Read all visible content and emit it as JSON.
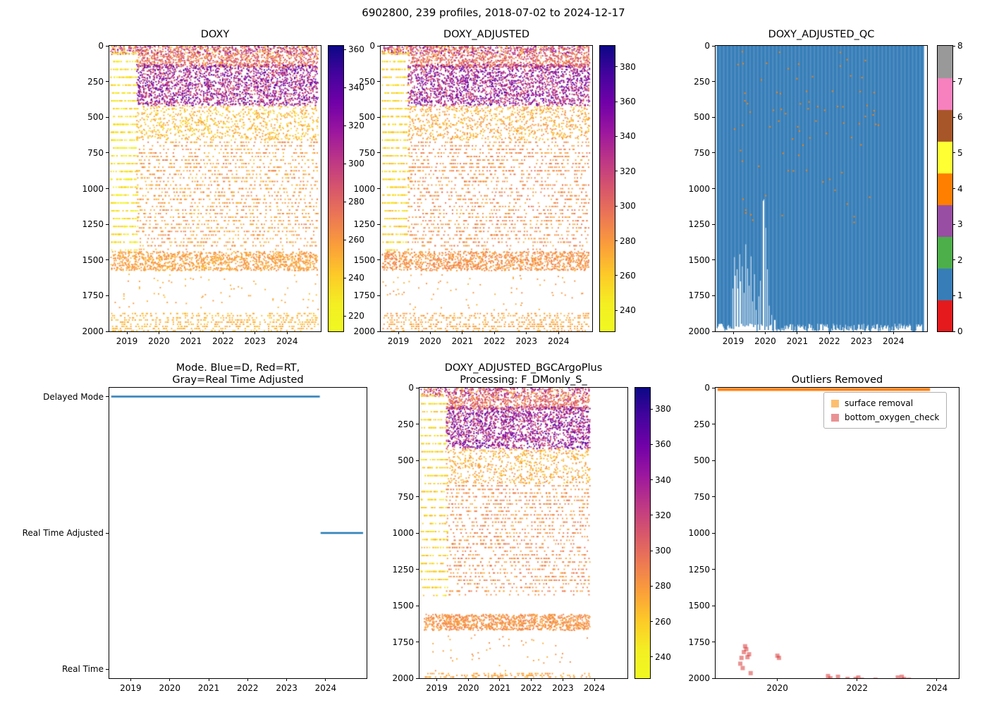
{
  "figure": {
    "suptitle": "6902800, 239 profiles, 2018-07-02 to 2024-12-17"
  },
  "chart_data": {
    "type": "scatter",
    "platform": "6902800",
    "profile_count": 239,
    "date_range": [
      "2018-07-02",
      "2024-12-17"
    ],
    "panels": [
      {
        "key": "doxy",
        "type": "profile_scatter",
        "title": "DOXY",
        "x_range": [
          2018.45,
          2025.05
        ],
        "x_ticks": [
          2019,
          2020,
          2021,
          2022,
          2023,
          2024
        ],
        "y_range": [
          0,
          2000
        ],
        "y_ticks": [
          0,
          250,
          500,
          750,
          1000,
          1250,
          1500,
          1750,
          2000
        ],
        "colorbar": {
          "vmin": 212,
          "vmax": 362,
          "ticks": [
            220,
            240,
            260,
            280,
            300,
            320,
            340,
            360
          ],
          "colormap": "plasma_r"
        },
        "seed": 11,
        "regions": [
          {
            "t": [
              2018.5,
              2024.96
            ],
            "d": [
              0,
              60
            ],
            "n": 700,
            "v": [
              240,
              330
            ]
          },
          {
            "t": [
              2018.5,
              2019.35
            ],
            "d": [
              30,
              1420
            ],
            "n": 700,
            "v": [
              214,
              246
            ],
            "dq": 55
          },
          {
            "t": [
              2019.3,
              2024.96
            ],
            "d": [
              60,
              150
            ],
            "n": 800,
            "v": [
              252,
              300
            ]
          },
          {
            "t": [
              2019.3,
              2024.96
            ],
            "d": [
              130,
              420
            ],
            "n": 2200,
            "v": [
              275,
              350
            ]
          },
          {
            "t": [
              2019.3,
              2024.96
            ],
            "d": [
              420,
              660
            ],
            "n": 900,
            "v": [
              232,
              262
            ]
          },
          {
            "t": [
              2019.3,
              2024.96
            ],
            "d": [
              660,
              1420
            ],
            "n": 1700,
            "v": [
              244,
              274
            ],
            "dq": 25
          },
          {
            "t": [
              2018.5,
              2024.96
            ],
            "d": [
              1440,
              1575
            ],
            "n": 1300,
            "v": [
              246,
              268
            ]
          },
          {
            "t": [
              2018.5,
              2024.96
            ],
            "d": [
              1600,
              1850
            ],
            "n": 70,
            "v": [
              244,
              262
            ]
          },
          {
            "t": [
              2018.5,
              2024.96
            ],
            "d": [
              1870,
              2000
            ],
            "n": 520,
            "v": [
              242,
              258
            ],
            "dq": 15
          }
        ]
      },
      {
        "key": "doxy_adjusted",
        "type": "profile_scatter",
        "title": "DOXY_ADJUSTED",
        "x_range": [
          2018.45,
          2025.05
        ],
        "x_ticks": [
          2019,
          2020,
          2021,
          2022,
          2023,
          2024
        ],
        "y_range": [
          0,
          2000
        ],
        "y_ticks": [
          0,
          250,
          500,
          750,
          1000,
          1250,
          1500,
          1750,
          2000
        ],
        "colorbar": {
          "vmin": 228,
          "vmax": 392,
          "ticks": [
            240,
            260,
            280,
            300,
            320,
            340,
            360,
            380
          ],
          "colormap": "plasma_r"
        },
        "seed": 12,
        "regions": [
          {
            "t": [
              2018.5,
              2024.96
            ],
            "d": [
              0,
              60
            ],
            "n": 700,
            "v": [
              266,
              356
            ]
          },
          {
            "t": [
              2018.5,
              2019.35
            ],
            "d": [
              30,
              1420
            ],
            "n": 700,
            "v": [
              240,
              272
            ],
            "dq": 55
          },
          {
            "t": [
              2019.3,
              2024.96
            ],
            "d": [
              60,
              150
            ],
            "n": 800,
            "v": [
              278,
              326
            ]
          },
          {
            "t": [
              2019.3,
              2024.96
            ],
            "d": [
              130,
              420
            ],
            "n": 2200,
            "v": [
              301,
              376
            ]
          },
          {
            "t": [
              2019.3,
              2024.96
            ],
            "d": [
              420,
              660
            ],
            "n": 900,
            "v": [
              258,
              288
            ]
          },
          {
            "t": [
              2019.3,
              2024.96
            ],
            "d": [
              660,
              1420
            ],
            "n": 1700,
            "v": [
              270,
              300
            ],
            "dq": 25
          },
          {
            "t": [
              2018.5,
              2024.96
            ],
            "d": [
              1440,
              1575
            ],
            "n": 1300,
            "v": [
              272,
              294
            ]
          },
          {
            "t": [
              2018.5,
              2024.96
            ],
            "d": [
              1600,
              1850
            ],
            "n": 70,
            "v": [
              270,
              288
            ]
          },
          {
            "t": [
              2018.5,
              2024.96
            ],
            "d": [
              1870,
              2000
            ],
            "n": 520,
            "v": [
              268,
              284
            ],
            "dq": 15
          }
        ]
      },
      {
        "key": "doxy_adjusted_qc",
        "type": "qc",
        "title": "DOXY_ADJUSTED_QC",
        "x_range": [
          2018.45,
          2025.05
        ],
        "x_ticks": [
          2019,
          2020,
          2021,
          2022,
          2023,
          2024
        ],
        "y_range": [
          0,
          2000
        ],
        "y_ticks": [
          0,
          250,
          500,
          750,
          1000,
          1250,
          1500,
          1750,
          2000
        ],
        "fill_color": "#377eb8",
        "fill_qc_value": 1,
        "speckle_color": "#ff7f00",
        "speckle_qc_value": 4,
        "speckles": {
          "n": 80,
          "t": [
            2019.05,
            2023.6
          ],
          "d": [
            40,
            1250
          ]
        },
        "max_depth": [
          1945,
          2005
        ],
        "shallow_profiles": [
          [
            2018.98,
            1700
          ],
          [
            2019.03,
            1480
          ],
          [
            2019.07,
            1610
          ],
          [
            2019.12,
            1565
          ],
          [
            2019.16,
            1700
          ],
          [
            2019.2,
            1460
          ],
          [
            2019.24,
            1650
          ],
          [
            2019.29,
            1545
          ],
          [
            2019.34,
            1730
          ],
          [
            2019.39,
            1390
          ],
          [
            2019.45,
            1560
          ],
          [
            2019.5,
            1680
          ],
          [
            2019.55,
            1475
          ],
          [
            2019.6,
            1790
          ],
          [
            2019.66,
            1600
          ],
          [
            2019.72,
            1850
          ],
          [
            2019.8,
            1755
          ],
          [
            2019.86,
            1645
          ],
          [
            2019.93,
            1085
          ],
          [
            2019.97,
            1075
          ],
          [
            2020.02,
            1275
          ],
          [
            2020.07,
            1565
          ],
          [
            2020.12,
            1820
          ],
          [
            2020.2,
            1885
          ],
          [
            2020.3,
            1920
          ]
        ],
        "colorbar": {
          "vmin": 0,
          "vmax": 8,
          "ticks": [
            0,
            1,
            2,
            3,
            4,
            5,
            6,
            7,
            8
          ],
          "colors": [
            "#e41a1c",
            "#377eb8",
            "#4daf4a",
            "#984ea3",
            "#ff7f00",
            "#ffff33",
            "#a65628",
            "#f781bf",
            "#999999"
          ]
        },
        "seed": 13
      },
      {
        "key": "mode",
        "type": "mode",
        "title_lines": [
          "Mode. Blue=D, Red=RT,",
          "Gray=Real Time Adjusted"
        ],
        "x_range": [
          2018.45,
          2025.05
        ],
        "x_ticks": [
          2019,
          2020,
          2021,
          2022,
          2023,
          2024
        ],
        "categories": [
          "Delayed Mode",
          "Real Time Adjusted",
          "Real Time"
        ],
        "line_color": "#1f77b4",
        "segments": [
          {
            "category_index": 0,
            "t": [
              2018.5,
              2023.85
            ]
          },
          {
            "category_index": 1,
            "t": [
              2023.87,
              2024.96
            ]
          }
        ]
      },
      {
        "key": "doxy_adjusted_bgcargoplus",
        "type": "profile_scatter",
        "title_lines": [
          "DOXY_ADJUSTED_BGCArgoPlus",
          "Processing: F_DMonly_S_"
        ],
        "x_range": [
          2018.45,
          2025.05
        ],
        "x_ticks": [
          2019,
          2020,
          2021,
          2022,
          2023,
          2024
        ],
        "y_range": [
          0,
          2000
        ],
        "y_ticks": [
          0,
          250,
          500,
          750,
          1000,
          1250,
          1500,
          1750,
          2000
        ],
        "colorbar": {
          "vmin": 228,
          "vmax": 392,
          "ticks": [
            240,
            260,
            280,
            300,
            320,
            340,
            360,
            380
          ],
          "colormap": "plasma_r"
        },
        "seed": 15,
        "regions": [
          {
            "t": [
              2018.5,
              2023.85
            ],
            "d": [
              0,
              60
            ],
            "n": 500,
            "v": [
              266,
              356
            ]
          },
          {
            "t": [
              2018.5,
              2019.35
            ],
            "d": [
              30,
              1420
            ],
            "n": 600,
            "v": [
              240,
              272
            ],
            "dq": 55
          },
          {
            "t": [
              2019.3,
              2023.85
            ],
            "d": [
              60,
              150
            ],
            "n": 650,
            "v": [
              278,
              326
            ]
          },
          {
            "t": [
              2019.3,
              2023.85
            ],
            "d": [
              130,
              420
            ],
            "n": 1900,
            "v": [
              301,
              376
            ]
          },
          {
            "t": [
              2019.3,
              2023.85
            ],
            "d": [
              420,
              660
            ],
            "n": 700,
            "v": [
              258,
              288
            ]
          },
          {
            "t": [
              2019.3,
              2023.85
            ],
            "d": [
              660,
              1420
            ],
            "n": 1400,
            "v": [
              270,
              300
            ],
            "dq": 25
          },
          {
            "t": [
              2018.6,
              2023.85
            ],
            "d": [
              1560,
              1670
            ],
            "n": 1100,
            "v": [
              272,
              294
            ]
          },
          {
            "t": [
              2018.6,
              2023.85
            ],
            "d": [
              1700,
              1950
            ],
            "n": 45,
            "v": [
              270,
              288
            ]
          },
          {
            "t": [
              2018.6,
              2023.85
            ],
            "d": [
              1965,
              2000
            ],
            "n": 160,
            "v": [
              268,
              284
            ],
            "dq": 12
          }
        ]
      },
      {
        "key": "outliers",
        "type": "outliers",
        "title": "Outliers Removed",
        "x_range": [
          2018.45,
          2024.55
        ],
        "x_ticks": [
          2020,
          2022,
          2024
        ],
        "y_range": [
          0,
          2000
        ],
        "y_ticks": [
          0,
          250,
          500,
          750,
          1000,
          1250,
          1500,
          1750,
          2000
        ],
        "surface_line": {
          "t": [
            2018.5,
            2023.83
          ],
          "depth": 12,
          "color": "#ff7f0e",
          "width": 4
        },
        "point_style": {
          "color": "#d62728",
          "alpha": 0.5,
          "size": 6
        },
        "outlier_points": [
          [
            2019.07,
            1900
          ],
          [
            2019.1,
            1860
          ],
          [
            2019.13,
            1930
          ],
          [
            2019.16,
            1820
          ],
          [
            2019.19,
            1780
          ],
          [
            2019.22,
            1800
          ],
          [
            2019.25,
            1855
          ],
          [
            2019.29,
            1835
          ],
          [
            2019.33,
            1965
          ],
          [
            2020.0,
            1845
          ],
          [
            2020.04,
            1860
          ],
          [
            2021.27,
            1985
          ],
          [
            2021.33,
            2000
          ],
          [
            2021.52,
            1990
          ],
          [
            2021.76,
            2005
          ],
          [
            2021.86,
            2020
          ],
          [
            2021.96,
            2005
          ],
          [
            2022.03,
            1995
          ],
          [
            2022.12,
            2010
          ],
          [
            2022.3,
            2025
          ],
          [
            2022.46,
            2010
          ],
          [
            2023.02,
            1995
          ],
          [
            2023.12,
            1990
          ],
          [
            2023.18,
            2005
          ],
          [
            2023.3,
            2010
          ],
          [
            2023.36,
            2025
          ],
          [
            2023.5,
            2015
          ],
          [
            2023.56,
            2035
          ]
        ],
        "legend": [
          {
            "label": "surface removal",
            "color": "#fdbf6f"
          },
          {
            "label": "bottom_oxygen_check",
            "color": "#ea9293"
          }
        ]
      }
    ]
  }
}
